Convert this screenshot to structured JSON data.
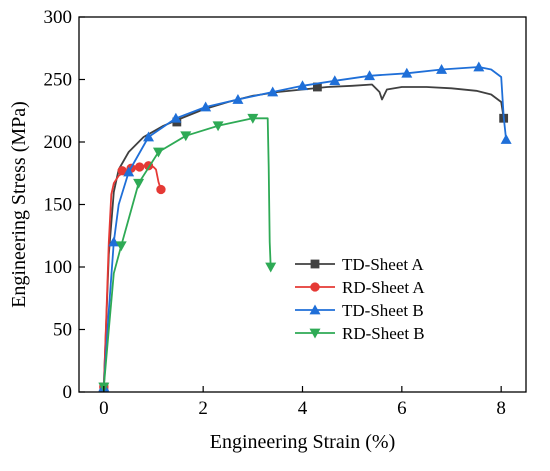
{
  "chart_data": {
    "type": "line",
    "xlabel": "Engineering Strain (%)",
    "ylabel": "Engineering Stress (MPa)",
    "xlim": [
      -0.5,
      8.5
    ],
    "ylim": [
      0,
      300
    ],
    "xticks": [
      0,
      2,
      4,
      6,
      8
    ],
    "yticks": [
      0,
      50,
      100,
      150,
      200,
      250,
      300
    ],
    "grid": false,
    "legend_position": "bottom-right",
    "series": [
      {
        "name": "TD-Sheet A",
        "color": "#404040",
        "marker": "square",
        "x": [
          0,
          0.1,
          0.2,
          0.3,
          0.5,
          0.8,
          1.2,
          1.5,
          2.0,
          2.5,
          3.0,
          3.5,
          4.0,
          4.5,
          5.0,
          5.4,
          5.55,
          5.6,
          5.7,
          6.0,
          6.5,
          7.0,
          7.5,
          7.8,
          8.0,
          8.05
        ],
        "y": [
          4,
          110,
          160,
          178,
          192,
          204,
          213,
          218,
          226,
          232,
          237,
          240,
          242,
          244,
          245,
          246,
          240,
          234,
          242,
          244,
          244,
          243,
          241,
          238,
          232,
          219
        ],
        "markers": [
          [
            0,
            4
          ],
          [
            1.47,
            216
          ],
          [
            4.3,
            244
          ],
          [
            8.05,
            219
          ]
        ]
      },
      {
        "name": "RD-Sheet A",
        "color": "#e53935",
        "marker": "circle",
        "x": [
          0,
          0.05,
          0.1,
          0.15,
          0.2,
          0.3,
          0.4,
          0.5,
          0.6,
          0.7,
          0.8,
          0.9,
          1.0,
          1.05,
          1.1,
          1.15
        ],
        "y": [
          4,
          60,
          120,
          158,
          167,
          173,
          176,
          178,
          179,
          180,
          181,
          181,
          180,
          178,
          168,
          162
        ],
        "markers": [
          [
            0,
            4
          ],
          [
            0.37,
            177
          ],
          [
            0.55,
            179
          ],
          [
            0.72,
            180
          ],
          [
            0.9,
            181
          ],
          [
            1.15,
            162
          ]
        ]
      },
      {
        "name": "TD-Sheet B",
        "color": "#1f6fd8",
        "marker": "triangle-up",
        "x": [
          0,
          0.1,
          0.2,
          0.3,
          0.5,
          0.9,
          1.45,
          2.05,
          2.7,
          3.4,
          4.0,
          4.65,
          5.35,
          6.1,
          6.8,
          7.55,
          7.8,
          8.0,
          8.05,
          8.1
        ],
        "y": [
          4,
          65,
          120,
          150,
          176,
          204,
          219,
          228,
          234,
          240,
          245,
          249,
          253,
          255,
          258,
          260,
          258,
          252,
          220,
          202
        ],
        "markers": [
          [
            0,
            4
          ],
          [
            0.2,
            120
          ],
          [
            0.5,
            176
          ],
          [
            0.9,
            204
          ],
          [
            1.45,
            219
          ],
          [
            2.05,
            228
          ],
          [
            2.7,
            234
          ],
          [
            3.4,
            240
          ],
          [
            4.0,
            245
          ],
          [
            4.65,
            249
          ],
          [
            5.35,
            253
          ],
          [
            6.1,
            255
          ],
          [
            6.8,
            258
          ],
          [
            7.55,
            260
          ],
          [
            8.1,
            202
          ]
        ]
      },
      {
        "name": "RD-Sheet B",
        "color": "#2eaa55",
        "marker": "triangle-down",
        "x": [
          0,
          0.1,
          0.2,
          0.35,
          0.7,
          1.1,
          1.65,
          2.3,
          3.0,
          3.2,
          3.3,
          3.32,
          3.34,
          3.36
        ],
        "y": [
          4,
          50,
          95,
          117,
          167,
          192,
          205,
          213,
          219,
          219,
          219,
          180,
          120,
          100
        ],
        "markers": [
          [
            0,
            4
          ],
          [
            0.35,
            117
          ],
          [
            0.7,
            167
          ],
          [
            1.1,
            192
          ],
          [
            1.65,
            205
          ],
          [
            2.3,
            213
          ],
          [
            3.0,
            219
          ],
          [
            3.36,
            100
          ]
        ]
      }
    ]
  }
}
